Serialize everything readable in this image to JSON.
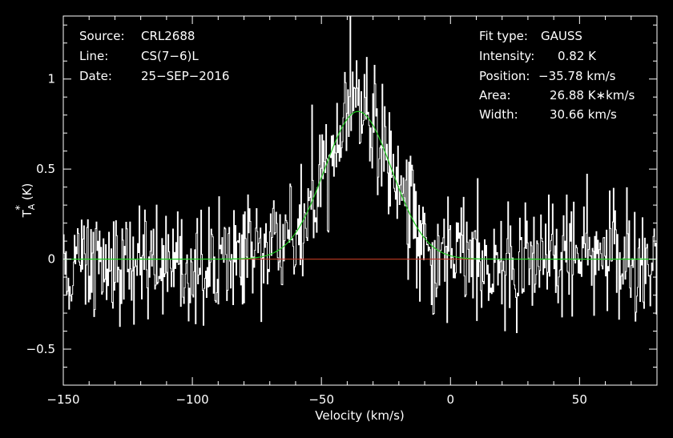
{
  "colors": {
    "background": "#000000",
    "spectrum": "#ffffff",
    "fit": "#22cc22",
    "baseline": "#cc2222",
    "zero_line": "#22cc22"
  },
  "info_left": [
    {
      "key": "Source:",
      "value": "CRL2688"
    },
    {
      "key": "Line:",
      "value": "CS(7−6)L"
    },
    {
      "key": "Date:",
      "value": "25−SEP−2016"
    }
  ],
  "info_right": [
    {
      "key": "Fit type:",
      "value": "GAUSS"
    },
    {
      "key": "Intensity:",
      "value": "0.82 K"
    },
    {
      "key": "Position:",
      "value": "−35.78 km/s"
    },
    {
      "key": "Area:",
      "value": "26.88 K∗km/s"
    },
    {
      "key": "Width:",
      "value": "30.66 km/s"
    }
  ],
  "chart_data": {
    "type": "line",
    "xlabel": "Velocity (km/s)",
    "ylabel_main": "T",
    "ylabel_sup": "*",
    "ylabel_sub": "A",
    "ylabel_units": "(K)",
    "xlim": [
      -150,
      80
    ],
    "ylim": [
      -0.7,
      1.35
    ],
    "x_ticks": [
      -150,
      -100,
      -50,
      0,
      50
    ],
    "x_tick_labels": [
      "−150",
      "−100",
      "−50",
      "0",
      "50"
    ],
    "y_ticks": [
      -0.5,
      0,
      0.5,
      1
    ],
    "y_tick_labels": [
      "−0.5",
      "0",
      "0.5",
      "1"
    ],
    "x_minor_step": 10,
    "y_minor_step": 0.1,
    "series": [
      {
        "kind": "noisy-spectrum",
        "x_range": [
          -150,
          80
        ],
        "channels": 760,
        "rms": 0.17
      },
      {
        "kind": "gaussian-fit",
        "amplitude": 0.82,
        "center": -35.78,
        "fwhm": 30.66,
        "x_range": [
          -150,
          80
        ]
      }
    ],
    "baseline_window": [
      -82,
      9
    ]
  }
}
